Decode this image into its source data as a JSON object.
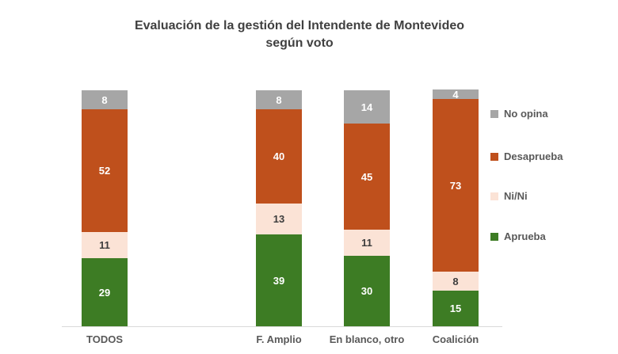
{
  "header": {
    "title_lines": [
      "Evaluación de la gestión del Intendente de Montevideo",
      "según voto"
    ]
  },
  "chart_data": {
    "type": "bar",
    "stacked": true,
    "title": "Evaluación de la gestión del Intendente de Montevideo según voto",
    "xlabel": "",
    "ylabel": "",
    "ylim": [
      0,
      100
    ],
    "grid": false,
    "legend_position": "right",
    "categories": [
      "TODOS",
      "F. Amplio",
      "En blanco, otro",
      "Coalición"
    ],
    "series": [
      {
        "name": "Aprueba",
        "color": "#3d7c24",
        "label_color": "#ffffff",
        "values": [
          29,
          39,
          30,
          15
        ]
      },
      {
        "name": "Ni/Ni",
        "color": "#fbe3d6",
        "label_color": "#3d3d3d",
        "values": [
          11,
          13,
          11,
          8
        ]
      },
      {
        "name": "Desaprueba",
        "color": "#bf501c",
        "label_color": "#ffffff",
        "values": [
          52,
          40,
          45,
          73
        ]
      },
      {
        "name": "No opina",
        "color": "#a6a6a6",
        "label_color": "#ffffff",
        "values": [
          8,
          8,
          14,
          4
        ]
      }
    ],
    "legend": [
      {
        "label": "No opina",
        "color": "#a6a6a6"
      },
      {
        "label": "Desaprueba",
        "color": "#bf501c"
      },
      {
        "label": "Ni/Ni",
        "color": "#fbe3d6"
      },
      {
        "label": "Aprueba",
        "color": "#3d7c24"
      }
    ],
    "colors": {
      "title_text": "#404040",
      "axis_text": "#595959",
      "axis_line": "#d9d9d9",
      "background": "#ffffff"
    }
  }
}
